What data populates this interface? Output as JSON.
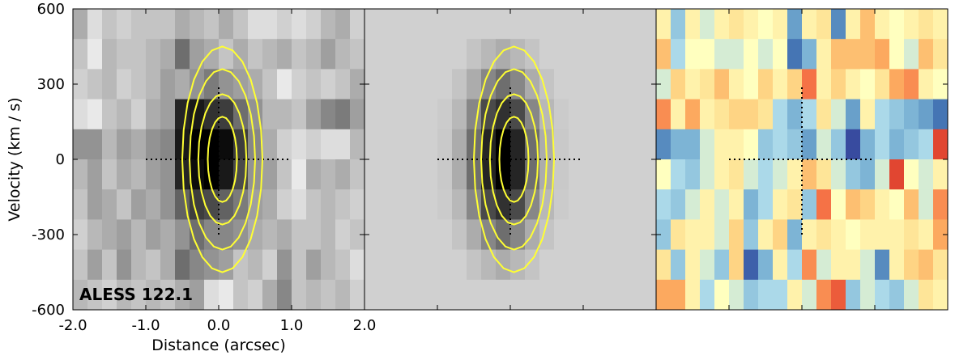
{
  "chart_data": {
    "type": "heatmap",
    "title": "",
    "xlabel": "Distance (arcsec)",
    "ylabel": "Velocity (km / s)",
    "xlim": [
      -2.0,
      2.0
    ],
    "ylim": [
      -600,
      600
    ],
    "xticks": [
      "-2.0",
      "-1.0",
      "0.0",
      "1.0",
      "2.0"
    ],
    "yticks": [
      "600",
      "300",
      "0",
      "-300",
      "-600"
    ],
    "annotation": "ALESS 122.1",
    "grid": false,
    "contour_color": "#ffff33",
    "cross_center": [
      0,
      0
    ],
    "cross_half_width_arcsec": 1.0,
    "cross_half_height_kms": 300,
    "contours_kms_halfheight": [
      440,
      350,
      250,
      160
    ],
    "contours_arcsec_halfwidth": [
      0.55,
      0.45,
      0.33,
      0.2
    ],
    "panels": [
      {
        "name": "data",
        "colormap": "gray",
        "values": [
          [
            0.3,
            0.1,
            0.2,
            0.15,
            0.2,
            0.2,
            0.2,
            0.3,
            0.25,
            0.2,
            0.3,
            0.2,
            0.1,
            0.1,
            0.15,
            0.1,
            0.15,
            0.25,
            0.3,
            0.15
          ],
          [
            0.2,
            0.05,
            0.25,
            0.2,
            0.2,
            0.25,
            0.3,
            0.55,
            0.35,
            0.3,
            0.2,
            0.3,
            0.2,
            0.25,
            0.3,
            0.2,
            0.25,
            0.35,
            0.25,
            0.2
          ],
          [
            0.15,
            0.2,
            0.25,
            0.15,
            0.2,
            0.25,
            0.35,
            0.3,
            0.4,
            0.5,
            0.4,
            0.35,
            0.3,
            0.2,
            0.05,
            0.15,
            0.2,
            0.15,
            0.2,
            0.3
          ],
          [
            0.1,
            0.05,
            0.2,
            0.25,
            0.15,
            0.3,
            0.35,
            0.85,
            0.9,
            0.8,
            0.75,
            0.55,
            0.4,
            0.25,
            0.25,
            0.2,
            0.35,
            0.45,
            0.5,
            0.35
          ],
          [
            0.4,
            0.4,
            0.25,
            0.35,
            0.3,
            0.4,
            0.45,
            0.9,
            1.0,
            1.0,
            0.95,
            0.75,
            0.45,
            0.3,
            0.15,
            0.1,
            0.15,
            0.1,
            0.1,
            0.25
          ],
          [
            0.25,
            0.35,
            0.2,
            0.3,
            0.25,
            0.35,
            0.4,
            0.85,
            0.95,
            1.0,
            0.9,
            0.7,
            0.4,
            0.35,
            0.2,
            0.05,
            0.3,
            0.25,
            0.3,
            0.2
          ],
          [
            0.2,
            0.35,
            0.3,
            0.2,
            0.35,
            0.3,
            0.4,
            0.6,
            0.75,
            0.7,
            0.6,
            0.5,
            0.35,
            0.3,
            0.15,
            0.1,
            0.2,
            0.25,
            0.2,
            0.15
          ],
          [
            0.15,
            0.25,
            0.3,
            0.35,
            0.25,
            0.35,
            0.3,
            0.4,
            0.55,
            0.45,
            0.45,
            0.4,
            0.3,
            0.25,
            0.3,
            0.2,
            0.2,
            0.25,
            0.15,
            0.2
          ],
          [
            0.2,
            0.35,
            0.2,
            0.4,
            0.25,
            0.2,
            0.3,
            0.55,
            0.45,
            0.4,
            0.35,
            0.2,
            0.25,
            0.15,
            0.4,
            0.2,
            0.35,
            0.25,
            0.2,
            0.1
          ],
          [
            0.25,
            0.2,
            0.15,
            0.25,
            0.2,
            0.25,
            0.2,
            0.3,
            0.35,
            0.1,
            0.05,
            0.2,
            0.15,
            0.3,
            0.45,
            0.2,
            0.25,
            0.2,
            0.25,
            0.15
          ]
        ]
      },
      {
        "name": "model",
        "colormap": "gray",
        "values": [
          [
            0.15,
            0.15,
            0.15,
            0.15,
            0.15,
            0.15,
            0.15,
            0.15,
            0.15,
            0.15,
            0.15,
            0.15,
            0.15,
            0.15,
            0.15,
            0.15,
            0.15,
            0.15,
            0.15,
            0.15
          ],
          [
            0.15,
            0.15,
            0.15,
            0.15,
            0.15,
            0.15,
            0.15,
            0.2,
            0.25,
            0.3,
            0.25,
            0.2,
            0.15,
            0.15,
            0.15,
            0.15,
            0.15,
            0.15,
            0.15,
            0.15
          ],
          [
            0.15,
            0.15,
            0.15,
            0.15,
            0.15,
            0.15,
            0.2,
            0.3,
            0.45,
            0.55,
            0.45,
            0.3,
            0.2,
            0.15,
            0.15,
            0.15,
            0.15,
            0.15,
            0.15,
            0.15
          ],
          [
            0.15,
            0.15,
            0.15,
            0.15,
            0.15,
            0.17,
            0.25,
            0.45,
            0.7,
            0.8,
            0.7,
            0.45,
            0.25,
            0.17,
            0.15,
            0.15,
            0.15,
            0.15,
            0.15,
            0.15
          ],
          [
            0.15,
            0.15,
            0.15,
            0.15,
            0.15,
            0.18,
            0.3,
            0.55,
            0.85,
            1.0,
            0.85,
            0.55,
            0.3,
            0.18,
            0.15,
            0.15,
            0.15,
            0.15,
            0.15,
            0.15
          ],
          [
            0.15,
            0.15,
            0.15,
            0.15,
            0.15,
            0.18,
            0.3,
            0.55,
            0.85,
            1.0,
            0.85,
            0.55,
            0.3,
            0.18,
            0.15,
            0.15,
            0.15,
            0.15,
            0.15,
            0.15
          ],
          [
            0.15,
            0.15,
            0.15,
            0.15,
            0.15,
            0.17,
            0.25,
            0.45,
            0.7,
            0.8,
            0.7,
            0.45,
            0.25,
            0.17,
            0.15,
            0.15,
            0.15,
            0.15,
            0.15,
            0.15
          ],
          [
            0.15,
            0.15,
            0.15,
            0.15,
            0.15,
            0.15,
            0.2,
            0.3,
            0.45,
            0.55,
            0.45,
            0.3,
            0.2,
            0.15,
            0.15,
            0.15,
            0.15,
            0.15,
            0.15,
            0.15
          ],
          [
            0.15,
            0.15,
            0.15,
            0.15,
            0.15,
            0.15,
            0.15,
            0.2,
            0.25,
            0.3,
            0.25,
            0.2,
            0.15,
            0.15,
            0.15,
            0.15,
            0.15,
            0.15,
            0.15,
            0.15
          ],
          [
            0.15,
            0.15,
            0.15,
            0.15,
            0.15,
            0.15,
            0.15,
            0.15,
            0.15,
            0.15,
            0.15,
            0.15,
            0.15,
            0.15,
            0.15,
            0.15,
            0.15,
            0.15,
            0.15,
            0.15
          ]
        ]
      },
      {
        "name": "residual",
        "colormap": "RdYlBu_r",
        "values": [
          [
            0.55,
            0.35,
            0.55,
            0.45,
            0.55,
            0.6,
            0.55,
            0.5,
            0.55,
            0.25,
            0.55,
            0.6,
            0.2,
            0.55,
            0.7,
            0.55,
            0.5,
            0.55,
            0.6,
            0.55
          ],
          [
            0.7,
            0.4,
            0.5,
            0.5,
            0.45,
            0.45,
            0.5,
            0.45,
            0.5,
            0.15,
            0.3,
            0.55,
            0.7,
            0.7,
            0.7,
            0.75,
            0.5,
            0.45,
            0.7,
            0.6
          ],
          [
            0.45,
            0.65,
            0.55,
            0.6,
            0.7,
            0.55,
            0.5,
            0.65,
            0.55,
            0.65,
            0.85,
            0.55,
            0.65,
            0.55,
            0.5,
            0.6,
            0.75,
            0.8,
            0.55,
            0.5
          ],
          [
            0.8,
            0.55,
            0.75,
            0.55,
            0.6,
            0.65,
            0.65,
            0.6,
            0.4,
            0.3,
            0.4,
            0.6,
            0.45,
            0.25,
            0.55,
            0.4,
            0.35,
            0.3,
            0.25,
            0.15
          ],
          [
            0.2,
            0.3,
            0.3,
            0.45,
            0.55,
            0.55,
            0.5,
            0.35,
            0.4,
            0.35,
            0.25,
            0.45,
            0.35,
            0.05,
            0.3,
            0.4,
            0.3,
            0.35,
            0.4,
            0.95
          ],
          [
            0.5,
            0.4,
            0.35,
            0.45,
            0.55,
            0.6,
            0.45,
            0.4,
            0.45,
            0.55,
            0.7,
            0.6,
            0.45,
            0.35,
            0.3,
            0.45,
            0.95,
            0.5,
            0.45,
            0.55
          ],
          [
            0.4,
            0.35,
            0.45,
            0.55,
            0.45,
            0.55,
            0.3,
            0.4,
            0.55,
            0.6,
            0.35,
            0.85,
            0.5,
            0.7,
            0.65,
            0.55,
            0.5,
            0.7,
            0.45,
            0.8
          ],
          [
            0.35,
            0.6,
            0.55,
            0.55,
            0.45,
            0.65,
            0.35,
            0.55,
            0.65,
            0.3,
            0.55,
            0.6,
            0.55,
            0.5,
            0.55,
            0.55,
            0.55,
            0.6,
            0.55,
            0.75
          ],
          [
            0.6,
            0.35,
            0.55,
            0.45,
            0.35,
            0.65,
            0.1,
            0.3,
            0.55,
            0.4,
            0.8,
            0.45,
            0.55,
            0.55,
            0.45,
            0.2,
            0.55,
            0.65,
            0.7,
            0.6
          ],
          [
            0.75,
            0.75,
            0.55,
            0.4,
            0.5,
            0.45,
            0.35,
            0.4,
            0.4,
            0.55,
            0.45,
            0.8,
            0.9,
            0.35,
            0.45,
            0.4,
            0.35,
            0.45,
            0.6,
            0.55
          ]
        ]
      }
    ]
  }
}
